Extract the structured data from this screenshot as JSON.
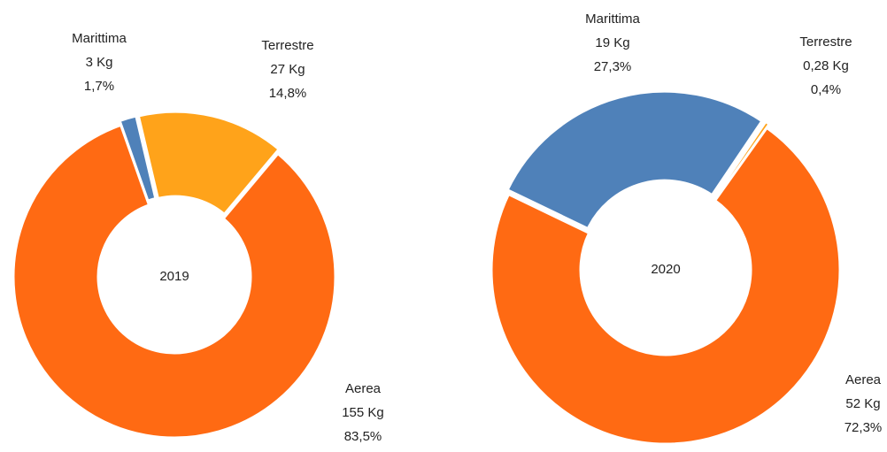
{
  "chart_data": [
    {
      "type": "donut",
      "center_label": "2019",
      "categories": [
        "Marittima",
        "Terrestre",
        "Aerea"
      ],
      "values": [
        1.7,
        14.8,
        83.5
      ],
      "value_labels": [
        "1,7%",
        "14,8%",
        "83,5%"
      ],
      "kg": [
        3,
        27,
        155
      ],
      "kg_labels": [
        "3 Kg",
        "27 Kg",
        "155 Kg"
      ],
      "colors": [
        "#4f81b9",
        "#ffa31a",
        "#ff6a13"
      ]
    },
    {
      "type": "donut",
      "center_label": "2020",
      "categories": [
        "Marittima",
        "Terrestre",
        "Aerea"
      ],
      "values": [
        27.3,
        0.4,
        72.3
      ],
      "value_labels": [
        "27,3%",
        "0,4%",
        "72,3%"
      ],
      "kg": [
        19,
        0.28,
        52
      ],
      "kg_labels": [
        "19 Kg",
        "0,28 Kg",
        "52 Kg"
      ],
      "colors": [
        "#4f81b9",
        "#ffa31a",
        "#ff6a13"
      ]
    }
  ]
}
